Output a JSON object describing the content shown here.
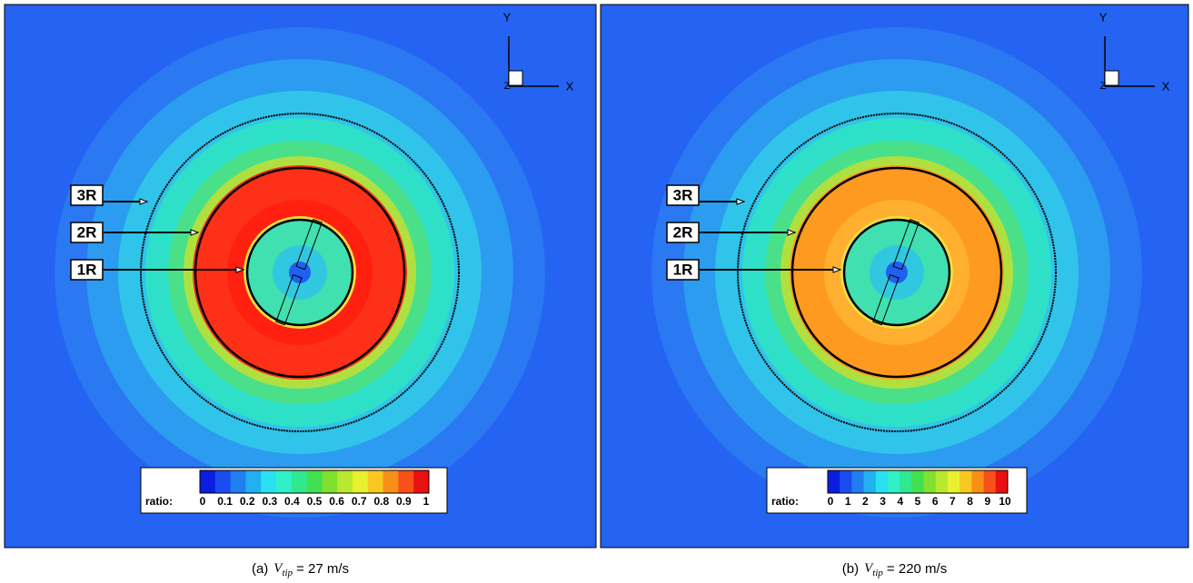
{
  "panels": [
    {
      "rings": [
        "3R",
        "2R",
        "1R"
      ],
      "axes": {
        "y": "Y",
        "x": "X",
        "z": "Z"
      },
      "colorbar": {
        "label": "ratio:",
        "ticks": [
          "0",
          "0.1",
          "0.2",
          "0.3",
          "0.4",
          "0.5",
          "0.6",
          "0.7",
          "0.8",
          "0.9",
          "1"
        ]
      },
      "caption": {
        "label": "(a)",
        "symbol": "V",
        "subscript": "tip",
        "text": "= 27 m/s"
      }
    },
    {
      "rings": [
        "3R",
        "2R",
        "1R"
      ],
      "axes": {
        "y": "Y",
        "x": "X",
        "z": "Z"
      },
      "colorbar": {
        "label": "ratio:",
        "ticks": [
          "0",
          "1",
          "2",
          "3",
          "4",
          "5",
          "6",
          "7",
          "8",
          "9",
          "10"
        ]
      },
      "caption": {
        "label": "(b)",
        "symbol": "V",
        "subscript": "tip",
        "text": "= 220 m/s"
      }
    }
  ]
}
